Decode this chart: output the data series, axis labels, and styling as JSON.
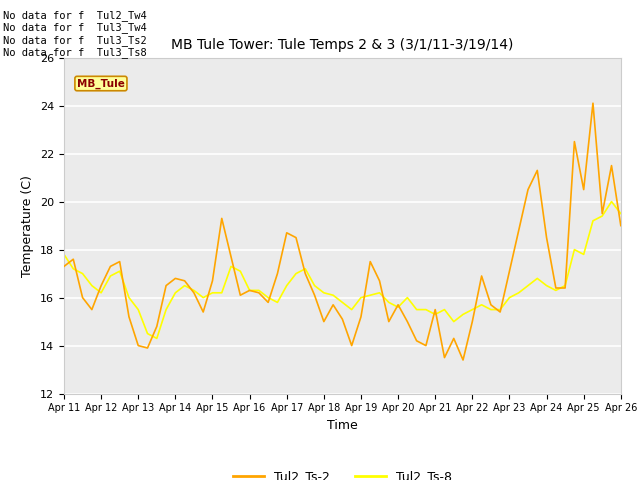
{
  "title": "MB Tule Tower: Tule Temps 2 & 3 (3/1/11-3/19/14)",
  "xlabel": "Time",
  "ylabel": "Temperature (C)",
  "ylim": [
    12,
    26
  ],
  "yticks": [
    12,
    14,
    16,
    18,
    20,
    22,
    24,
    26
  ],
  "plot_bg_color": "#ebebeb",
  "fig_bg_color": "#ffffff",
  "legend_labels": [
    "Tul2_Ts-2",
    "Tul2_Ts-8"
  ],
  "line_color_ts2": "#FFA500",
  "line_color_ts8": "#FFFF00",
  "no_data_lines": [
    "No data for f  Tul2_Tw4",
    "No data for f  Tul3_Tw4",
    "No data for f  Tul3_Ts2",
    "No data for f  Tul3_Ts8"
  ],
  "xtick_labels": [
    "Apr 11",
    "Apr 12",
    "Apr 13",
    "Apr 14",
    "Apr 15",
    "Apr 16",
    "Apr 17",
    "Apr 18",
    "Apr 19",
    "Apr 20",
    "Apr 21",
    "Apr 22",
    "Apr 23",
    "Apr 24",
    "Apr 25",
    "Apr 26"
  ],
  "x_vals_ts2": [
    0,
    0.25,
    0.5,
    0.75,
    1.0,
    1.25,
    1.5,
    1.75,
    2.0,
    2.25,
    2.5,
    2.75,
    3.0,
    3.25,
    3.5,
    3.75,
    4.0,
    4.25,
    4.5,
    4.75,
    5.0,
    5.25,
    5.5,
    5.75,
    6.0,
    6.25,
    6.5,
    6.75,
    7.0,
    7.25,
    7.5,
    7.75,
    8.0,
    8.25,
    8.5,
    8.75,
    9.0,
    9.25,
    9.5,
    9.75,
    10.0,
    10.25,
    10.5,
    10.75,
    11.0,
    11.25,
    11.5,
    11.75,
    12.0,
    12.25,
    12.5,
    12.75,
    13.0,
    13.25,
    13.5,
    13.75,
    14.0,
    14.25,
    14.5,
    14.75,
    15.0
  ],
  "y_vals_ts2": [
    17.3,
    17.6,
    16.0,
    15.5,
    16.5,
    17.3,
    17.5,
    15.2,
    14.0,
    13.9,
    14.8,
    16.5,
    16.8,
    16.7,
    16.2,
    15.4,
    16.7,
    19.3,
    17.7,
    16.1,
    16.3,
    16.2,
    15.8,
    17.0,
    18.7,
    18.5,
    17.0,
    16.1,
    15.0,
    15.7,
    15.1,
    14.0,
    15.2,
    17.5,
    16.7,
    15.0,
    15.7,
    15.0,
    14.2,
    14.0,
    15.5,
    13.5,
    14.3,
    13.4,
    15.0,
    16.9,
    15.7,
    15.4,
    17.1,
    18.8,
    20.5,
    21.3,
    18.5,
    16.4,
    16.4,
    22.5,
    20.5,
    24.1,
    19.5,
    21.5,
    19.0
  ],
  "x_vals_ts8": [
    0,
    0.25,
    0.5,
    0.75,
    1.0,
    1.25,
    1.5,
    1.75,
    2.0,
    2.25,
    2.5,
    2.75,
    3.0,
    3.25,
    3.5,
    3.75,
    4.0,
    4.25,
    4.5,
    4.75,
    5.0,
    5.25,
    5.5,
    5.75,
    6.0,
    6.25,
    6.5,
    6.75,
    7.0,
    7.25,
    7.5,
    7.75,
    8.0,
    8.25,
    8.5,
    8.75,
    9.0,
    9.25,
    9.5,
    9.75,
    10.0,
    10.25,
    10.5,
    10.75,
    11.0,
    11.25,
    11.5,
    11.75,
    12.0,
    12.25,
    12.5,
    12.75,
    13.0,
    13.25,
    13.5,
    13.75,
    14.0,
    14.25,
    14.5,
    14.75,
    15.0
  ],
  "y_vals_ts8": [
    17.8,
    17.2,
    17.0,
    16.5,
    16.2,
    16.9,
    17.1,
    16.0,
    15.5,
    14.5,
    14.3,
    15.5,
    16.2,
    16.5,
    16.3,
    16.0,
    16.2,
    16.2,
    17.3,
    17.1,
    16.3,
    16.3,
    16.0,
    15.8,
    16.5,
    17.0,
    17.2,
    16.5,
    16.2,
    16.1,
    15.8,
    15.5,
    16.0,
    16.1,
    16.2,
    15.8,
    15.6,
    16.0,
    15.5,
    15.5,
    15.3,
    15.5,
    15.0,
    15.3,
    15.5,
    15.7,
    15.5,
    15.5,
    16.0,
    16.2,
    16.5,
    16.8,
    16.5,
    16.3,
    16.5,
    18.0,
    17.8,
    19.2,
    19.4,
    20.0,
    19.5
  ]
}
